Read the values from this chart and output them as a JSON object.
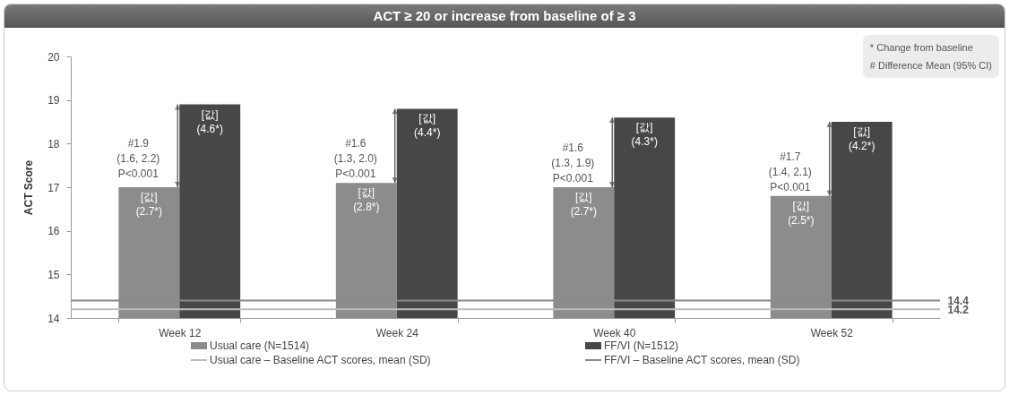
{
  "chart_data": {
    "type": "bar",
    "title": "ACT ≥ 20 or increase from baseline of ≥ 3",
    "ylabel": "ACT Score",
    "categories": [
      "Week 12",
      "Week 24",
      "Week 40",
      "Week 52"
    ],
    "series": [
      {
        "name": "Usual care (N=1514)",
        "color": "#8c8c8c",
        "values": [
          17.0,
          17.1,
          17.0,
          16.8
        ]
      },
      {
        "name": "FF/VI (N=1512)",
        "color": "#474747",
        "values": [
          18.9,
          18.8,
          18.6,
          18.5
        ]
      }
    ],
    "ylim": [
      14,
      20
    ],
    "yticks": [
      14,
      15,
      16,
      17,
      18,
      19,
      20
    ],
    "y2lim": [
      14,
      20
    ],
    "y2ticks": [
      14.2,
      14.4
    ],
    "grid": false,
    "legend": "bottom",
    "ref_lines": [
      {
        "axis": "y",
        "value": 14.2,
        "label": "Usual care – Baseline ACT scores, mean (SD)",
        "color": "#bdbdbd"
      },
      {
        "axis": "y",
        "value": 14.4,
        "label": "FF/VI – Baseline ACT scores, mean (SD)",
        "color": "#8a8a8a"
      }
    ],
    "annotations": [
      {
        "text": "#1.9\n(1.6, 2.2)\nP<0.001",
        "x": "Week 12",
        "y": 18.0
      },
      {
        "text": "#1.6\n(1.3, 2.0)\nP<0.001",
        "x": "Week 24",
        "y": 18.0
      },
      {
        "text": "#1.6\n(1.3, 1.9)\nP<0.001",
        "x": "Week 40",
        "y": 17.9
      },
      {
        "text": "#1.7\n(1.4, 2.1)\nP<0.001",
        "x": "Week 52",
        "y": 17.7
      },
      {
        "text": "[값]\n(2.7*)",
        "x": "Week 12",
        "y": 17.0
      },
      {
        "text": "[값]\n(2.8*)",
        "x": "Week 24",
        "y": 17.1
      },
      {
        "text": "[값]\n(2.7*)",
        "x": "Week 40",
        "y": 17.0
      },
      {
        "text": "[값]\n(2.5*)",
        "x": "Week 52",
        "y": 16.8
      },
      {
        "text": "[값]\n(4.6*)",
        "x": "Week 12",
        "y": 18.9
      },
      {
        "text": "[값]\n(4.4*)",
        "x": "Week 24",
        "y": 18.8
      },
      {
        "text": "[값]\n(4.3*)",
        "x": "Week 40",
        "y": 18.6
      },
      {
        "text": "[값]\n(4.2*)",
        "x": "Week 52",
        "y": 18.5
      },
      "* Change from baseline",
      "# Difference Mean (95% CI)"
    ]
  }
}
